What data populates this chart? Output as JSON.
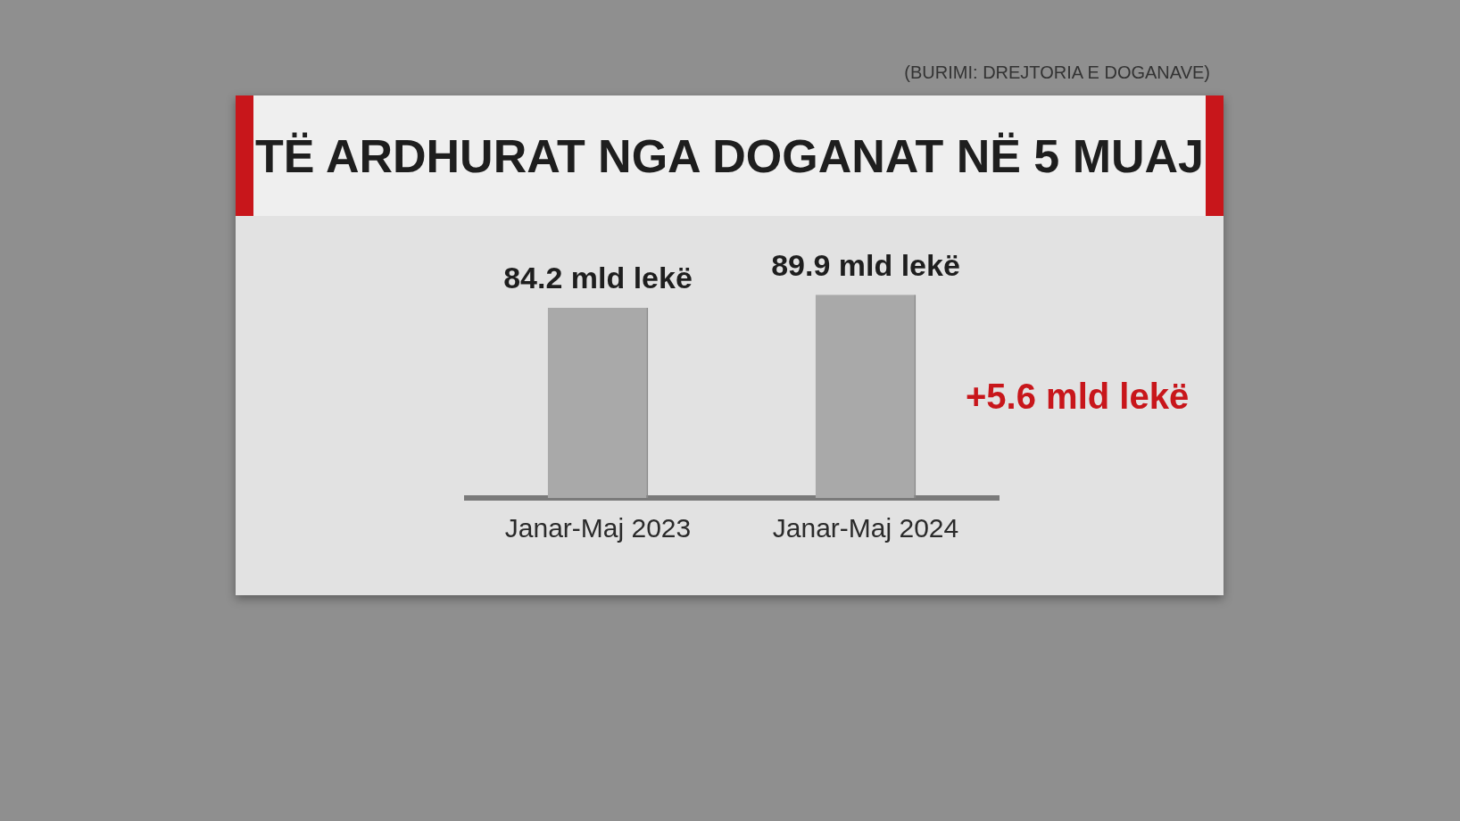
{
  "chart_data": {
    "type": "bar",
    "title": "TË ARDHURAT NGA DOGANAT NË 5 MUAJ",
    "categories": [
      "Janar-Maj 2023",
      "Janar-Maj 2024"
    ],
    "values": [
      84.2,
      89.9
    ],
    "value_labels": [
      "84.2 mld lekë",
      "89.9 mld lekë"
    ],
    "color": "#a9a9a9",
    "grid": false,
    "legend": false,
    "annotations": [
      "(BURIMI: DREJTORIA E DOGANAVE)",
      "+5.6 mld lekë"
    ]
  }
}
